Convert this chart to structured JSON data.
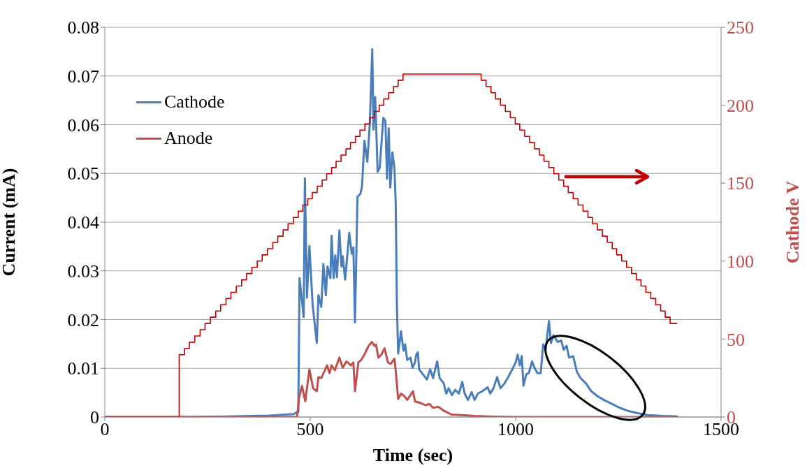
{
  "chart_data": {
    "type": "line",
    "xlabel": "Time (sec)",
    "ylabel": "Current (mA)",
    "y2label": "Cathode V",
    "xlim": [
      0,
      1500
    ],
    "xticks": [
      0,
      500,
      1000,
      1500
    ],
    "ylim": [
      0,
      0.08
    ],
    "yticks": [
      0,
      0.01,
      0.02,
      0.03,
      0.04,
      0.05,
      0.06,
      0.07,
      0.08
    ],
    "y2lim": [
      0,
      250
    ],
    "y2ticks": [
      0,
      50,
      100,
      150,
      200,
      250
    ],
    "grid": "y",
    "legend": "top left",
    "marker": "none",
    "line_style": "solid",
    "series": [
      {
        "name": "Cathode",
        "color": "#4a7ebb",
        "x": [
          0,
          200,
          300,
          400,
          460,
          468,
          471,
          474,
          484,
          487,
          492,
          498,
          506,
          516,
          520,
          527,
          532,
          538,
          542,
          549,
          552,
          557,
          561,
          565,
          571,
          576,
          579,
          585,
          595,
          601,
          605,
          609,
          615,
          622,
          626,
          632,
          639,
          645,
          651,
          654,
          658,
          661,
          664,
          669,
          678,
          683,
          687,
          691,
          695,
          700,
          705,
          708,
          711,
          714,
          721,
          727,
          731,
          736,
          744,
          749,
          755,
          758,
          762,
          765,
          774,
          784,
          792,
          799,
          809,
          815,
          825,
          831,
          837,
          845,
          853,
          862,
          870,
          876,
          884,
          893,
          900,
          908,
          919,
          932,
          938,
          946,
          955,
          963,
          973,
          982,
          992,
          1000,
          1005,
          1010,
          1015,
          1019,
          1026,
          1032,
          1040,
          1046,
          1053,
          1061,
          1067,
          1073,
          1081,
          1086,
          1092,
          1102,
          1111,
          1117,
          1124,
          1130,
          1140,
          1149,
          1158,
          1171,
          1184,
          1199,
          1215,
          1234,
          1253,
          1272,
          1297,
          1322,
          1360,
          1395
        ],
        "values": [
          0,
          0,
          0.0001,
          0.0003,
          0.0006,
          0.001,
          0.001,
          0.0285,
          0.0205,
          0.049,
          0.0245,
          0.0351,
          0.0229,
          0.0152,
          0.025,
          0.0226,
          0.0314,
          0.025,
          0.0309,
          0.0285,
          0.0372,
          0.0285,
          0.0332,
          0.0287,
          0.0383,
          0.0309,
          0.033,
          0.0282,
          0.0378,
          0.0335,
          0.0348,
          0.0194,
          0.0452,
          0.0458,
          0.0473,
          0.0567,
          0.0524,
          0.0601,
          0.0755,
          0.059,
          0.0657,
          0.0585,
          0.0503,
          0.0511,
          0.0614,
          0.0607,
          0.0489,
          0.0593,
          0.0471,
          0.0543,
          0.0511,
          0.0442,
          0.0229,
          0.013,
          0.0176,
          0.0136,
          0.0149,
          0.0117,
          0.0122,
          0.0101,
          0.0112,
          0.0128,
          0.0133,
          0.0098,
          0.0088,
          0.0077,
          0.0098,
          0.008,
          0.0114,
          0.008,
          0.0069,
          0.0048,
          0.0059,
          0.0045,
          0.0056,
          0.0048,
          0.0072,
          0.0048,
          0.0035,
          0.0051,
          0.0035,
          0.0048,
          0.0053,
          0.0061,
          0.0048,
          0.0059,
          0.0082,
          0.0059,
          0.0069,
          0.0082,
          0.0098,
          0.0112,
          0.0128,
          0.0106,
          0.0125,
          0.0064,
          0.0088,
          0.009,
          0.0114,
          0.0101,
          0.009,
          0.009,
          0.0149,
          0.0138,
          0.0197,
          0.0152,
          0.0168,
          0.0154,
          0.0157,
          0.0138,
          0.0146,
          0.0122,
          0.0125,
          0.0093,
          0.008,
          0.0069,
          0.0053,
          0.0043,
          0.0035,
          0.0027,
          0.0019,
          0.0013,
          0.0008,
          0.0004,
          0.0002,
          0.0001
        ]
      },
      {
        "name": "Anode",
        "color": "#c0504d",
        "x": [
          0,
          468,
          473,
          480,
          488,
          498,
          507,
          516,
          520,
          527,
          541,
          547,
          552,
          560,
          571,
          579,
          588,
          599,
          605,
          609,
          617,
          624,
          633,
          642,
          650,
          656,
          660,
          666,
          673,
          681,
          689,
          696,
          705,
          708,
          714,
          721,
          729,
          736,
          750,
          755,
          768,
          781,
          790,
          799,
          812,
          825,
          844,
          869,
          900,
          932,
          995,
          1395
        ],
        "values": [
          0,
          0,
          0.004,
          0.0064,
          0.0032,
          0.0098,
          0.0059,
          0.0053,
          0.0082,
          0.008,
          0.0106,
          0.009,
          0.0106,
          0.0096,
          0.0122,
          0.0101,
          0.0114,
          0.0106,
          0.0112,
          0.0053,
          0.0112,
          0.0117,
          0.013,
          0.0146,
          0.0154,
          0.0146,
          0.0149,
          0.0122,
          0.0128,
          0.0141,
          0.0112,
          0.0109,
          0.012,
          0.0096,
          0.0037,
          0.0048,
          0.0043,
          0.0035,
          0.0053,
          0.0032,
          0.0029,
          0.0024,
          0.0027,
          0.0019,
          0.0021,
          0.0013,
          0.0005,
          0.0004,
          0.0002,
          0.0001,
          0,
          0
        ]
      },
      {
        "type": "step",
        "axis": "y2",
        "color": "#c00000",
        "x": [
          0,
          181,
          194,
          206,
          219,
          232,
          244,
          257,
          270,
          282,
          295,
          307,
          320,
          333,
          345,
          358,
          371,
          383,
          396,
          409,
          421,
          434,
          446,
          459,
          471,
          482,
          494,
          505,
          517,
          529,
          540,
          552,
          563,
          575,
          587,
          598,
          610,
          621,
          633,
          645,
          656,
          668,
          679,
          691,
          703,
          714,
          726,
          916,
          928,
          940,
          951,
          963,
          975,
          987,
          999,
          1010,
          1022,
          1034,
          1046,
          1058,
          1069,
          1081,
          1093,
          1105,
          1117,
          1128,
          1140,
          1152,
          1164,
          1176,
          1187,
          1199,
          1211,
          1223,
          1235,
          1246,
          1258,
          1270,
          1282,
          1294,
          1305,
          1317,
          1329,
          1341,
          1353,
          1364,
          1376,
          1393
        ],
        "values": [
          0,
          40,
          44,
          48,
          52,
          56,
          60,
          64,
          68,
          72,
          76,
          80,
          84,
          88,
          92,
          96,
          100,
          104,
          108,
          112,
          116,
          120,
          124,
          128,
          132,
          136,
          140,
          144,
          148,
          152,
          156,
          160,
          164,
          168,
          172,
          176,
          180,
          184,
          188,
          192,
          196,
          200,
          204,
          208,
          212,
          216,
          220,
          216,
          212,
          208,
          204,
          200,
          196,
          192,
          188,
          184,
          180,
          176,
          172,
          168,
          164,
          160,
          156,
          152,
          148,
          144,
          140,
          136,
          132,
          128,
          124,
          120,
          116,
          112,
          108,
          104,
          100,
          96,
          92,
          88,
          84,
          80,
          76,
          72,
          68,
          64,
          60,
          60
        ]
      }
    ]
  }
}
